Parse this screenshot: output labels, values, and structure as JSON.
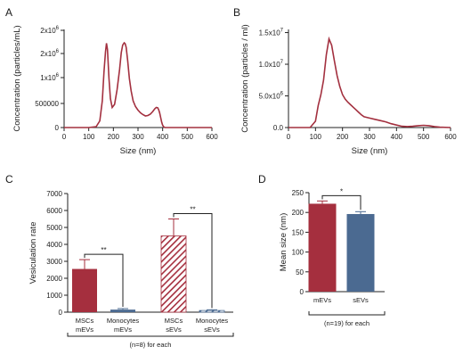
{
  "colors": {
    "msc": "#a52f3e",
    "monocyte": "#4b6a91",
    "mevs": "#a52f3e",
    "sevs": "#4b6a91"
  },
  "chart_data": [
    {
      "panel": "A",
      "type": "line",
      "xlabel": "Size (nm)",
      "ylabel": "Concentration (particles/mL)",
      "xlim": [
        0,
        600
      ],
      "ylim": [
        0,
        2200000
      ],
      "xticks": [
        "0",
        "100",
        "200",
        "300",
        "400",
        "500",
        "600"
      ],
      "yticks": [
        {
          "value": 0,
          "label": "0"
        },
        {
          "value": 500000,
          "label": "500000"
        },
        {
          "value": 1000000,
          "label": "1x10",
          "exp": "6"
        },
        {
          "value": 1500000,
          "label": "2x10",
          "exp": "6"
        },
        {
          "value": 2000000,
          "label": "2x10",
          "exp": "6"
        }
      ],
      "x": [
        0,
        100,
        130,
        145,
        155,
        162,
        168,
        172,
        176,
        182,
        188,
        195,
        205,
        215,
        225,
        232,
        238,
        244,
        248,
        252,
        258,
        265,
        272,
        280,
        290,
        300,
        310,
        320,
        330,
        340,
        350,
        360,
        368,
        374,
        380,
        384,
        388,
        392,
        396,
        400,
        405,
        410,
        420,
        440,
        600
      ],
      "y": [
        0,
        0,
        20000,
        150000,
        600000,
        1250000,
        1700000,
        1890000,
        1750000,
        1100000,
        650000,
        450000,
        520000,
        850000,
        1300000,
        1680000,
        1850000,
        1900000,
        1880000,
        1800000,
        1500000,
        1100000,
        820000,
        600000,
        470000,
        390000,
        330000,
        290000,
        260000,
        270000,
        300000,
        360000,
        420000,
        450000,
        445000,
        400000,
        330000,
        220000,
        120000,
        50000,
        10000,
        0,
        0,
        0,
        0
      ]
    },
    {
      "panel": "B",
      "type": "line",
      "xlabel": "Size (nm)",
      "ylabel": "Concentration (particles / ml)",
      "xlim": [
        0,
        600
      ],
      "ylim": [
        0,
        15500000
      ],
      "xticks": [
        "0",
        "100",
        "200",
        "300",
        "400",
        "500",
        "600"
      ],
      "yticks": [
        {
          "value": 0,
          "label": "0.0"
        },
        {
          "value": 5000000,
          "label": "5.0x10",
          "exp": "6"
        },
        {
          "value": 10000000,
          "label": "1.0x10",
          "exp": "7"
        },
        {
          "value": 15000000,
          "label": "1.5x10",
          "exp": "7"
        }
      ],
      "x": [
        0,
        80,
        100,
        110,
        120,
        130,
        140,
        150,
        160,
        170,
        180,
        190,
        200,
        210,
        220,
        230,
        240,
        250,
        260,
        270,
        280,
        300,
        320,
        340,
        360,
        380,
        400,
        420,
        440,
        460,
        480,
        500,
        520,
        540,
        560,
        600
      ],
      "y": [
        0,
        0,
        1000000,
        3500000,
        5200000,
        7500000,
        11500000,
        14000000,
        13000000,
        10500000,
        8200000,
        6500000,
        5200000,
        4500000,
        4000000,
        3600000,
        3200000,
        2800000,
        2400000,
        2000000,
        1700000,
        1500000,
        1300000,
        1100000,
        900000,
        600000,
        400000,
        200000,
        150000,
        200000,
        300000,
        350000,
        300000,
        150000,
        50000,
        0
      ]
    },
    {
      "panel": "C",
      "type": "bar",
      "ylabel": "Vesiculation rate",
      "ylim": [
        0,
        7000
      ],
      "yticks": [
        "0",
        "1000",
        "2000",
        "3000",
        "4000",
        "5000",
        "6000",
        "7000"
      ],
      "categories": [
        {
          "line1": "MSCs",
          "line2": "mEVs",
          "value": 2550,
          "error": 550,
          "pattern": "solid",
          "color": "msc"
        },
        {
          "line1": "Monocytes",
          "line2": "mEVs",
          "value": 150,
          "error": 60,
          "pattern": "solid",
          "color": "monocyte"
        },
        {
          "line1": "MSCs",
          "line2": "sEVs",
          "value": 4500,
          "error": 1000,
          "pattern": "hatched",
          "color": "msc"
        },
        {
          "line1": "Monocytes",
          "line2": "sEVs",
          "value": 100,
          "error": 40,
          "pattern": "hatched",
          "color": "monocyte"
        }
      ],
      "significance": [
        {
          "from": 0,
          "to": 1,
          "label": "**"
        },
        {
          "from": 2,
          "to": 3,
          "label": "**"
        }
      ],
      "footnote": "(n=8) for each"
    },
    {
      "panel": "D",
      "type": "bar",
      "ylabel": "Mean size (nm)",
      "ylim": [
        0,
        250
      ],
      "yticks": [
        "0",
        "50",
        "100",
        "150",
        "200",
        "250"
      ],
      "categories": [
        {
          "label": "mEVs",
          "value": 222,
          "error": 7,
          "color": "mevs"
        },
        {
          "label": "sEVs",
          "value": 196,
          "error": 6,
          "color": "sevs"
        }
      ],
      "significance": [
        {
          "from": 0,
          "to": 1,
          "label": "*"
        }
      ],
      "footnote": "(n=19) for each"
    }
  ]
}
